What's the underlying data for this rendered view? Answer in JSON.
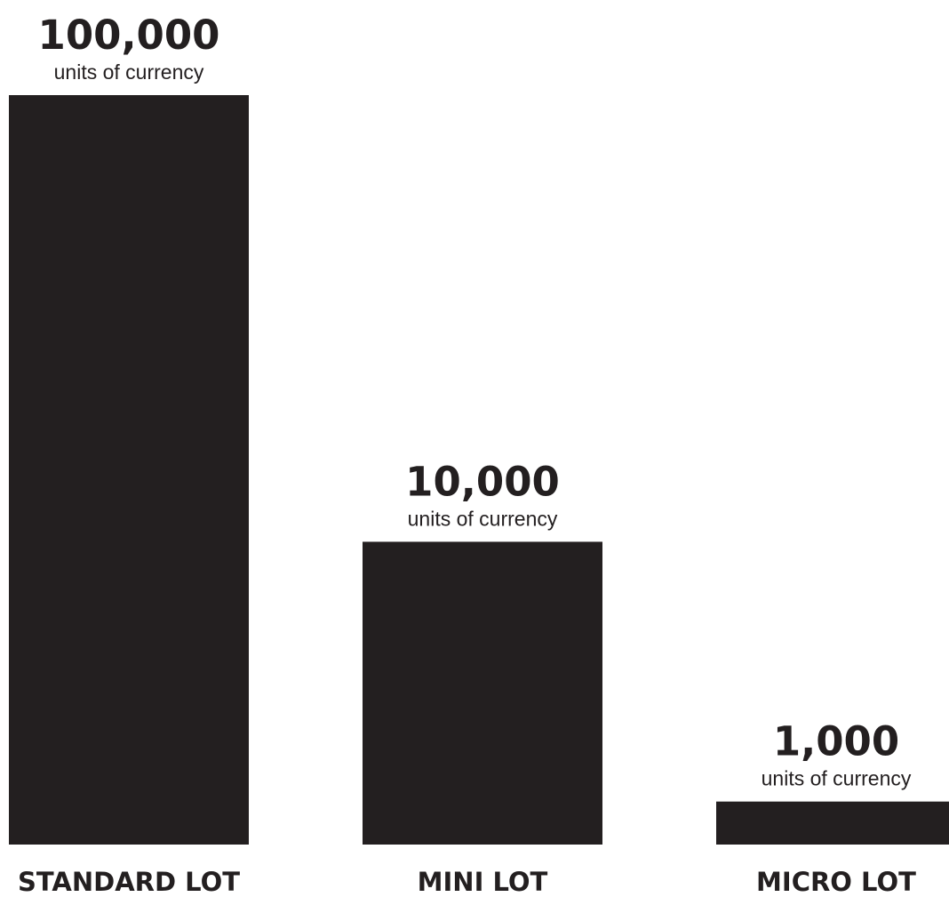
{
  "chart_data": {
    "type": "bar",
    "categories": [
      "STANDARD LOT",
      "MINI LOT",
      "MICRO LOT"
    ],
    "values": [
      100000,
      10000,
      1000
    ],
    "value_labels": [
      "100,000",
      "10,000",
      "1,000"
    ],
    "unit_label": "units of currency",
    "bar_color": "#231f20",
    "text_color": "#231f20",
    "grid": false,
    "legend": "none"
  }
}
